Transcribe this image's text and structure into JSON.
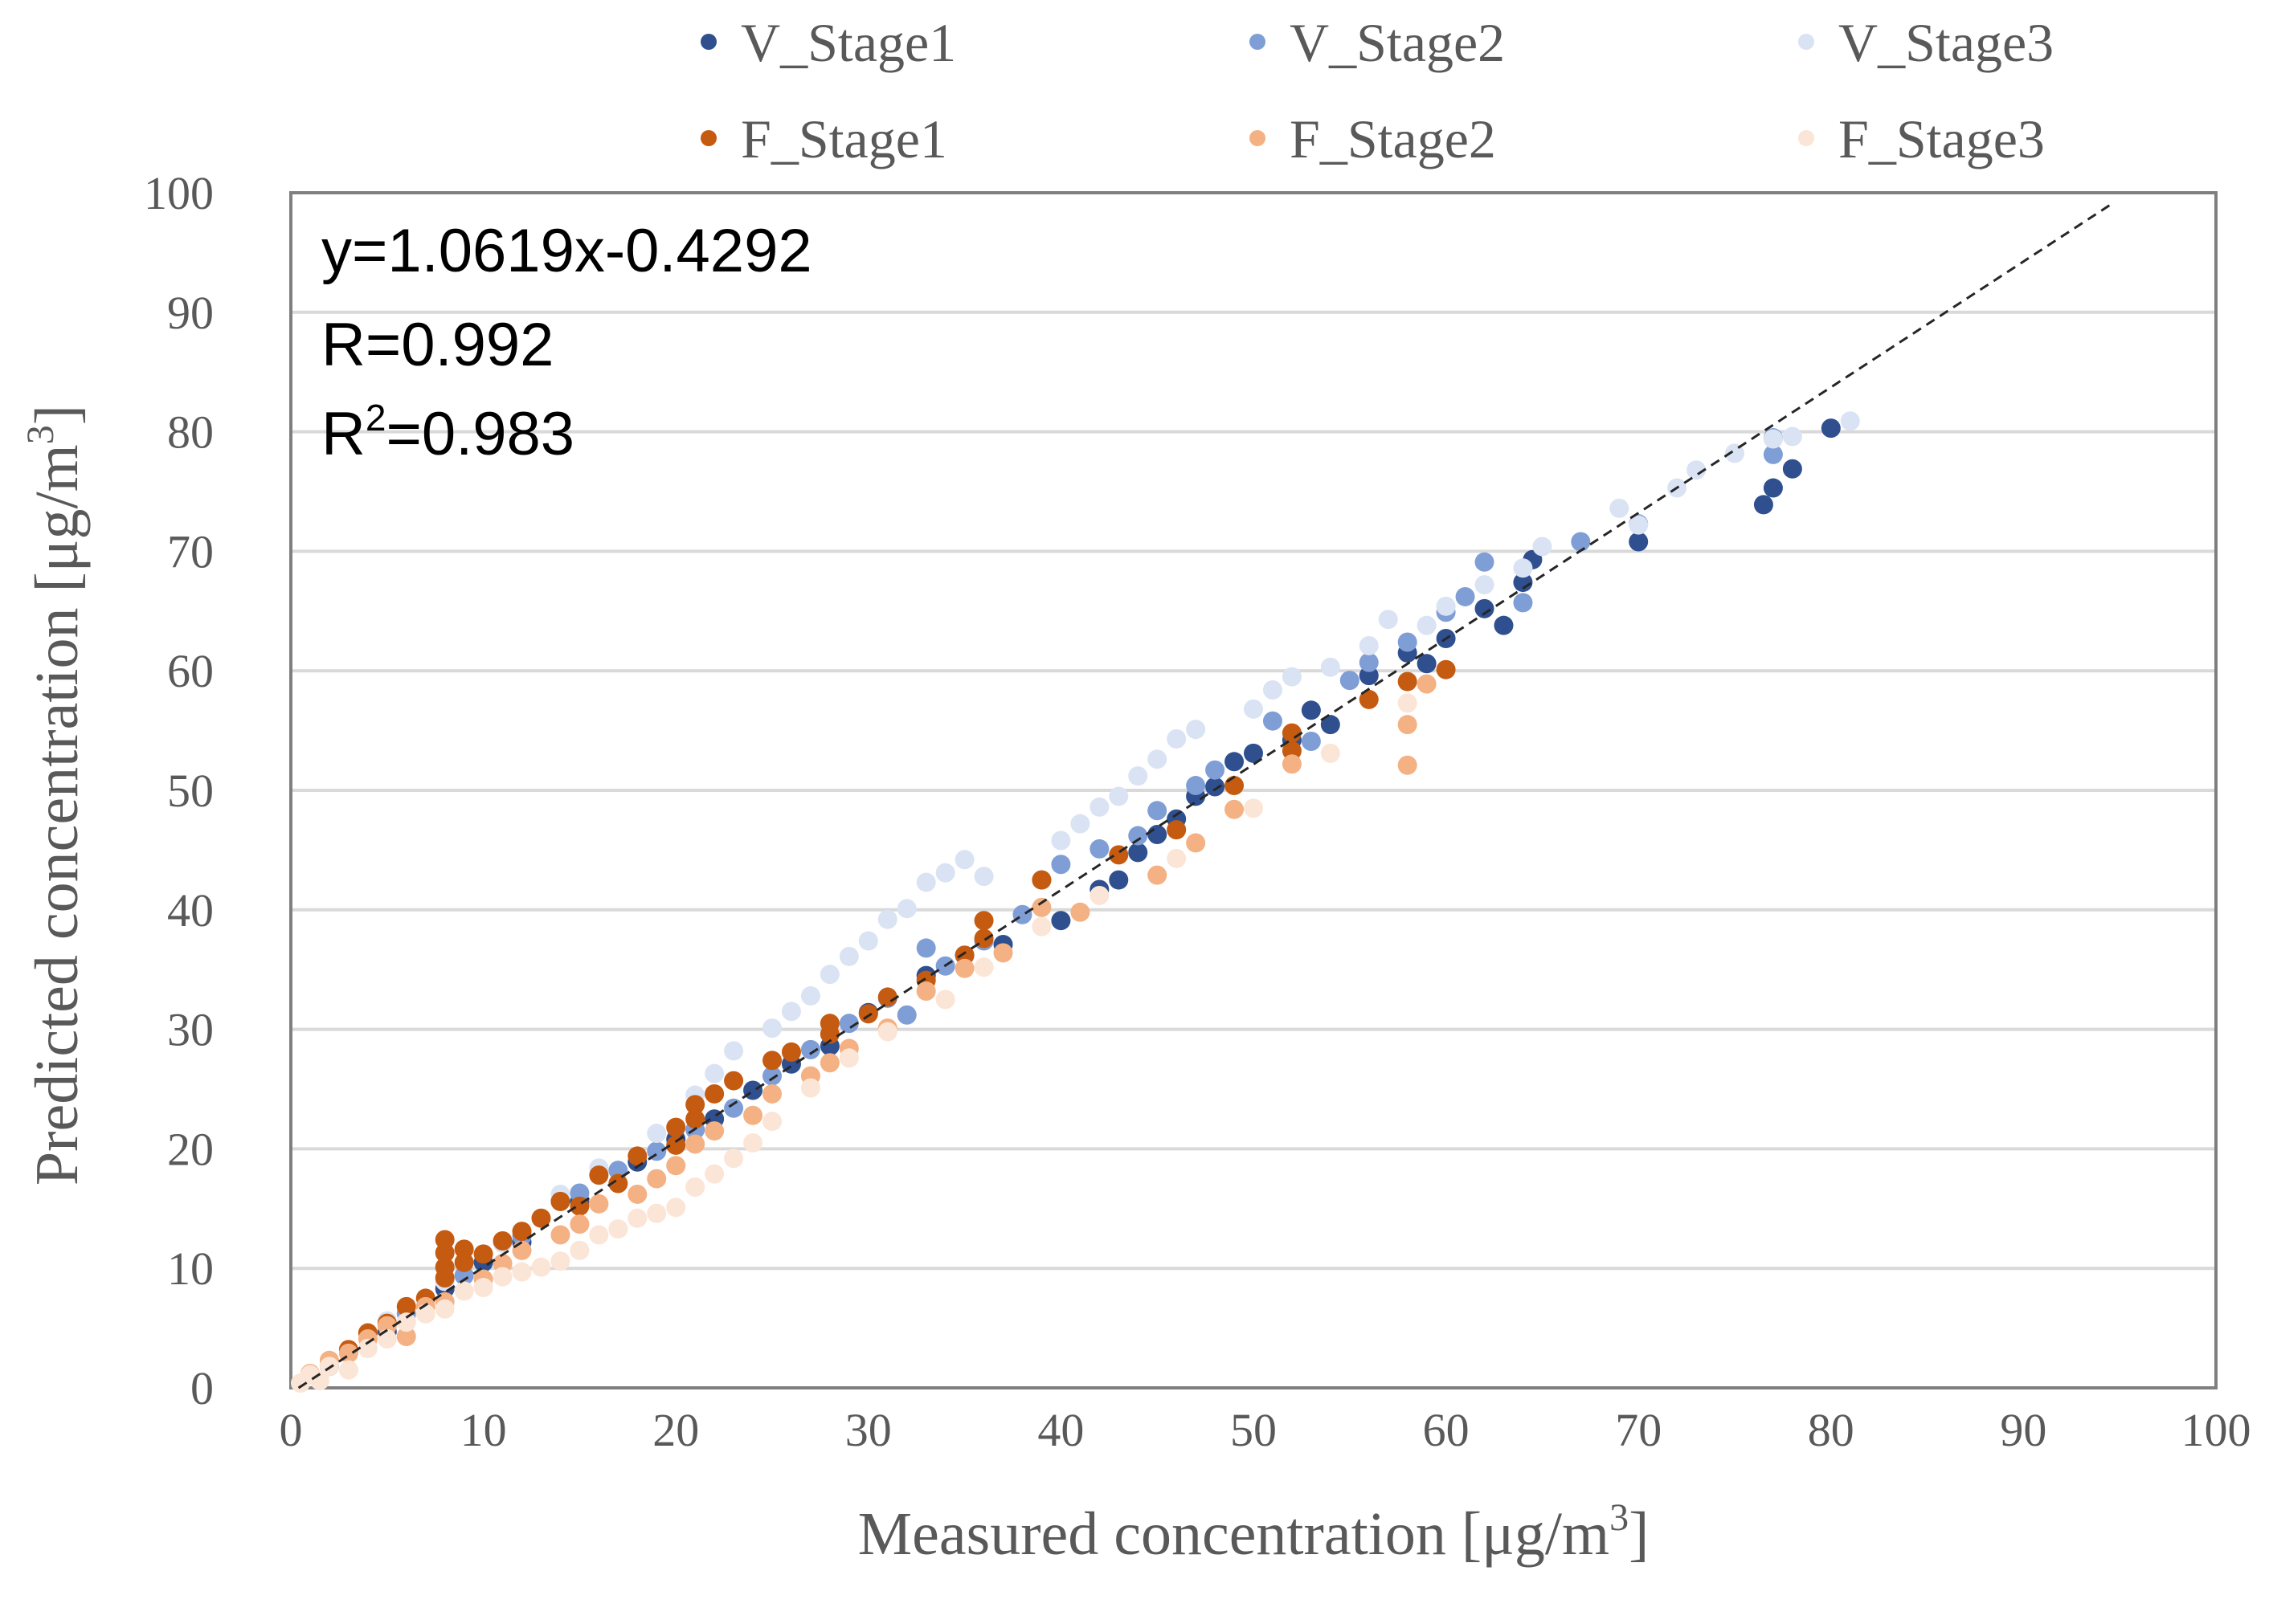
{
  "chart_data": {
    "type": "scatter",
    "title": "",
    "xlabel": "Measured concentration [μg/m",
    "ylabel": "Predicted concentration [μg/m",
    "unit_superscript": "3",
    "unit_close": "]",
    "xlim": [
      0,
      100
    ],
    "ylim": [
      0,
      100
    ],
    "xticks": [
      "0",
      "10",
      "20",
      "30",
      "40",
      "50",
      "60",
      "70",
      "80",
      "90",
      "100"
    ],
    "yticks": [
      "0",
      "10",
      "20",
      "30",
      "40",
      "50",
      "60",
      "70",
      "80",
      "90",
      "100"
    ],
    "grid": "horizontal",
    "legend_position": "top",
    "fit_line": {
      "slope": 1.0619,
      "intercept": -0.4292,
      "style": "dashed"
    },
    "annotations": {
      "equation": "y=1.0619x-0.4292",
      "r_label": "R=0.992",
      "r2_prefix": "R",
      "r2_sup": "2",
      "r2_value": "=0.983"
    },
    "series": [
      {
        "name": "V_Stage1",
        "color": "#2f4f8f",
        "points": [
          [
            2,
            1.8
          ],
          [
            5,
            4.7
          ],
          [
            8,
            8.3
          ],
          [
            10,
            10.5
          ],
          [
            12,
            12.2
          ],
          [
            15,
            15.6
          ],
          [
            18,
            18.9
          ],
          [
            20,
            20.8
          ],
          [
            22,
            22.5
          ],
          [
            24,
            24.9
          ],
          [
            26,
            27.1
          ],
          [
            28,
            28.6
          ],
          [
            30,
            31.4
          ],
          [
            33,
            34.5
          ],
          [
            35,
            36.2
          ],
          [
            37,
            37.1
          ],
          [
            40,
            39.1
          ],
          [
            42,
            41.7
          ],
          [
            43,
            42.5
          ],
          [
            44,
            44.8
          ],
          [
            45,
            46.3
          ],
          [
            46,
            47.6
          ],
          [
            47,
            49.5
          ],
          [
            48,
            50.3
          ],
          [
            49,
            52.4
          ],
          [
            50,
            53.1
          ],
          [
            52,
            54.2
          ],
          [
            53,
            56.7
          ],
          [
            54,
            55.5
          ],
          [
            56,
            59.6
          ],
          [
            58,
            61.5
          ],
          [
            59,
            60.6
          ],
          [
            60,
            62.7
          ],
          [
            62,
            65.2
          ],
          [
            63,
            63.8
          ],
          [
            64,
            67.4
          ],
          [
            64.5,
            69.3
          ],
          [
            70,
            70.8
          ],
          [
            76.5,
            73.9
          ],
          [
            77,
            75.3
          ],
          [
            78,
            76.9
          ],
          [
            80,
            80.3
          ]
        ]
      },
      {
        "name": "V_Stage2",
        "color": "#7f9ed6",
        "points": [
          [
            3,
            3.1
          ],
          [
            6,
            6.2
          ],
          [
            9,
            9.4
          ],
          [
            12,
            12.7
          ],
          [
            14,
            15.6
          ],
          [
            15,
            16.3
          ],
          [
            17,
            18.2
          ],
          [
            19,
            19.8
          ],
          [
            21,
            21.6
          ],
          [
            23,
            23.4
          ],
          [
            25,
            26.1
          ],
          [
            27,
            28.3
          ],
          [
            29,
            30.5
          ],
          [
            31,
            32.6
          ],
          [
            32,
            31.2
          ],
          [
            33,
            36.8
          ],
          [
            34,
            35.3
          ],
          [
            36,
            37.4
          ],
          [
            38,
            39.6
          ],
          [
            39,
            42.5
          ],
          [
            40,
            43.8
          ],
          [
            42,
            45.1
          ],
          [
            44,
            46.2
          ],
          [
            45,
            48.3
          ],
          [
            47,
            50.4
          ],
          [
            48,
            51.7
          ],
          [
            51,
            55.8
          ],
          [
            53,
            54.1
          ],
          [
            55,
            59.2
          ],
          [
            56,
            60.7
          ],
          [
            58,
            62.4
          ],
          [
            60,
            64.9
          ],
          [
            61,
            66.2
          ],
          [
            62,
            69.1
          ],
          [
            64,
            65.7
          ],
          [
            67,
            70.8
          ],
          [
            70,
            72.3
          ],
          [
            77,
            79.5
          ],
          [
            77,
            78.1
          ]
        ]
      },
      {
        "name": "V_Stage3",
        "color": "#dae3f3",
        "points": [
          [
            2,
            2.1
          ],
          [
            5,
            5.6
          ],
          [
            8,
            8.9
          ],
          [
            11,
            12.1
          ],
          [
            14,
            16.2
          ],
          [
            16,
            18.4
          ],
          [
            19,
            21.3
          ],
          [
            21,
            24.5
          ],
          [
            22,
            26.3
          ],
          [
            23,
            28.2
          ],
          [
            25,
            30.1
          ],
          [
            26,
            31.5
          ],
          [
            27,
            32.8
          ],
          [
            28,
            34.6
          ],
          [
            29,
            36.1
          ],
          [
            30,
            37.4
          ],
          [
            31,
            39.2
          ],
          [
            32,
            40.1
          ],
          [
            33,
            42.3
          ],
          [
            34,
            43.1
          ],
          [
            35,
            44.2
          ],
          [
            36,
            42.8
          ],
          [
            40,
            45.8
          ],
          [
            41,
            47.2
          ],
          [
            42,
            48.6
          ],
          [
            43,
            49.5
          ],
          [
            44,
            51.2
          ],
          [
            45,
            52.6
          ],
          [
            46,
            54.3
          ],
          [
            47,
            55.1
          ],
          [
            50,
            56.8
          ],
          [
            51,
            58.4
          ],
          [
            52,
            59.5
          ],
          [
            54,
            60.3
          ],
          [
            56,
            62.1
          ],
          [
            57,
            64.3
          ],
          [
            59,
            63.8
          ],
          [
            60,
            65.4
          ],
          [
            62,
            67.2
          ],
          [
            64,
            68.6
          ],
          [
            65,
            70.4
          ],
          [
            69,
            73.6
          ],
          [
            70,
            72.2
          ],
          [
            72,
            75.3
          ],
          [
            73,
            76.8
          ],
          [
            75,
            78.2
          ],
          [
            77,
            79.4
          ],
          [
            78,
            79.6
          ],
          [
            81,
            80.9
          ]
        ]
      },
      {
        "name": "F_Stage1",
        "color": "#c55a11",
        "points": [
          [
            3,
            3.2
          ],
          [
            4,
            4.6
          ],
          [
            5,
            5.4
          ],
          [
            6,
            6.8
          ],
          [
            7,
            7.5
          ],
          [
            8,
            9.2
          ],
          [
            8,
            10.1
          ],
          [
            8,
            11.3
          ],
          [
            8,
            12.4
          ],
          [
            9,
            10.5
          ],
          [
            9,
            11.6
          ],
          [
            10,
            11.2
          ],
          [
            11,
            12.3
          ],
          [
            12,
            13.1
          ],
          [
            13,
            14.2
          ],
          [
            14,
            15.6
          ],
          [
            15,
            15.2
          ],
          [
            16,
            17.8
          ],
          [
            17,
            17.1
          ],
          [
            18,
            19.4
          ],
          [
            20,
            20.3
          ],
          [
            20,
            21.8
          ],
          [
            21,
            22.5
          ],
          [
            21,
            23.7
          ],
          [
            22,
            24.6
          ],
          [
            23,
            25.7
          ],
          [
            25,
            27.4
          ],
          [
            26,
            28.1
          ],
          [
            28,
            29.6
          ],
          [
            28,
            30.5
          ],
          [
            30,
            31.3
          ],
          [
            31,
            32.7
          ],
          [
            33,
            34.1
          ],
          [
            35,
            36.2
          ],
          [
            36,
            39.1
          ],
          [
            36,
            37.6
          ],
          [
            39,
            42.5
          ],
          [
            43,
            44.6
          ],
          [
            46,
            46.7
          ],
          [
            49,
            50.4
          ],
          [
            52,
            54.8
          ],
          [
            52,
            53.3
          ],
          [
            56,
            57.6
          ],
          [
            58,
            59.1
          ],
          [
            60,
            60.1
          ]
        ]
      },
      {
        "name": "F_Stage2",
        "color": "#f4b183",
        "points": [
          [
            1,
            1.2
          ],
          [
            2,
            2.3
          ],
          [
            3,
            2.9
          ],
          [
            4,
            4.1
          ],
          [
            5,
            5.2
          ],
          [
            6,
            4.3
          ],
          [
            7,
            6.8
          ],
          [
            8,
            7.2
          ],
          [
            10,
            9.1
          ],
          [
            11,
            10.4
          ],
          [
            12,
            11.5
          ],
          [
            14,
            12.8
          ],
          [
            15,
            13.7
          ],
          [
            16,
            15.4
          ],
          [
            18,
            16.2
          ],
          [
            19,
            17.5
          ],
          [
            20,
            18.6
          ],
          [
            21,
            20.4
          ],
          [
            22,
            21.5
          ],
          [
            24,
            22.8
          ],
          [
            25,
            24.6
          ],
          [
            27,
            26.1
          ],
          [
            28,
            27.2
          ],
          [
            29,
            28.4
          ],
          [
            31,
            30.1
          ],
          [
            33,
            33.2
          ],
          [
            35,
            35.1
          ],
          [
            37,
            36.4
          ],
          [
            39,
            40.2
          ],
          [
            41,
            39.8
          ],
          [
            45,
            42.9
          ],
          [
            47,
            45.6
          ],
          [
            49,
            48.4
          ],
          [
            52,
            52.2
          ],
          [
            58,
            52.1
          ],
          [
            58,
            55.5
          ],
          [
            59,
            58.9
          ]
        ]
      },
      {
        "name": "F_Stage3",
        "color": "#fbe5d6",
        "points": [
          [
            0.5,
            0.4
          ],
          [
            1,
            1.1
          ],
          [
            1.5,
            0.6
          ],
          [
            2,
            1.8
          ],
          [
            3,
            1.5
          ],
          [
            4,
            3.3
          ],
          [
            5,
            4.1
          ],
          [
            6,
            5.5
          ],
          [
            7,
            6.2
          ],
          [
            8,
            6.6
          ],
          [
            9,
            8.1
          ],
          [
            10,
            8.4
          ],
          [
            11,
            9.3
          ],
          [
            12,
            9.7
          ],
          [
            13,
            10.1
          ],
          [
            14,
            10.6
          ],
          [
            15,
            11.5
          ],
          [
            16,
            12.8
          ],
          [
            17,
            13.3
          ],
          [
            18,
            14.2
          ],
          [
            19,
            14.6
          ],
          [
            20,
            15.1
          ],
          [
            21,
            16.8
          ],
          [
            22,
            17.9
          ],
          [
            23,
            19.2
          ],
          [
            24,
            20.5
          ],
          [
            25,
            22.3
          ],
          [
            27,
            25.1
          ],
          [
            29,
            27.6
          ],
          [
            31,
            29.8
          ],
          [
            34,
            32.5
          ],
          [
            36,
            35.2
          ],
          [
            39,
            38.6
          ],
          [
            42,
            41.2
          ],
          [
            46,
            44.3
          ],
          [
            50,
            48.5
          ],
          [
            54,
            53.1
          ],
          [
            58,
            57.3
          ]
        ]
      }
    ]
  }
}
